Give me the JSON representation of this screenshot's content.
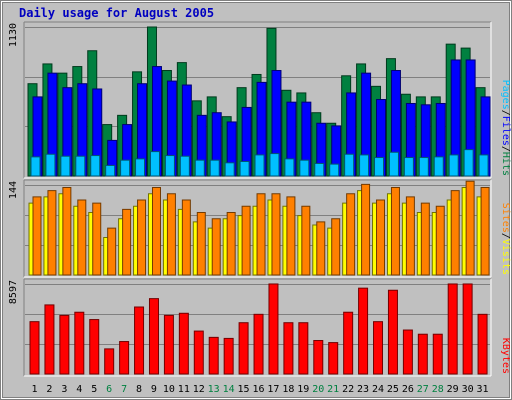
{
  "title": "Daily usage for August 2005",
  "colors": {
    "hits": "#008040",
    "files": "#0000ff",
    "pages": "#00c0ff",
    "visits": "#ffff00",
    "sites": "#ff8000",
    "kbytes": "#ff0000",
    "weekend": "#008040",
    "weekday": "#000000",
    "title": "#0000c0"
  },
  "chart_data": [
    {
      "type": "bar",
      "name": "hits-files-pages",
      "axis_max_label": "1130",
      "ylim": [
        0,
        1130
      ],
      "grid": true,
      "legend": [
        {
          "label": "Pages",
          "color": "#00c0ff"
        },
        {
          "label": "Files",
          "color": "#0000ff"
        },
        {
          "label": "Hits",
          "color": "#008040"
        }
      ],
      "categories": [
        "1",
        "2",
        "3",
        "4",
        "5",
        "6",
        "7",
        "8",
        "9",
        "10",
        "11",
        "12",
        "13",
        "14",
        "15",
        "16",
        "17",
        "18",
        "19",
        "20",
        "21",
        "22",
        "23",
        "24",
        "25",
        "26",
        "27",
        "28",
        "29",
        "30",
        "31"
      ],
      "weekend_days": [
        "6",
        "7",
        "13",
        "14",
        "20",
        "21",
        "27",
        "28"
      ],
      "series": [
        {
          "name": "Hits",
          "values": [
            700,
            850,
            780,
            830,
            950,
            390,
            460,
            790,
            1130,
            800,
            860,
            570,
            600,
            450,
            670,
            770,
            1120,
            650,
            630,
            480,
            400,
            760,
            850,
            680,
            890,
            620,
            600,
            600,
            1000,
            970,
            670
          ]
        },
        {
          "name": "Files",
          "values": [
            600,
            780,
            670,
            700,
            660,
            270,
            390,
            700,
            830,
            720,
            690,
            460,
            480,
            410,
            520,
            710,
            800,
            560,
            560,
            400,
            380,
            630,
            780,
            580,
            800,
            550,
            540,
            550,
            880,
            880,
            600
          ]
        },
        {
          "name": "Pages",
          "values": [
            145,
            165,
            150,
            150,
            155,
            80,
            120,
            130,
            185,
            155,
            150,
            120,
            120,
            100,
            110,
            160,
            170,
            130,
            120,
            95,
            90,
            165,
            160,
            140,
            180,
            140,
            140,
            145,
            160,
            200,
            160
          ]
        }
      ]
    },
    {
      "type": "bar",
      "name": "visits-sites",
      "axis_max_label": "144",
      "ylim": [
        0,
        144
      ],
      "grid": true,
      "legend": [
        {
          "label": "Sites",
          "color": "#ff8000"
        },
        {
          "label": "/",
          "color": "#000000"
        },
        {
          "label": "Visits",
          "color": "#ffff00"
        }
      ],
      "categories": [
        "1",
        "2",
        "3",
        "4",
        "5",
        "6",
        "7",
        "8",
        "9",
        "10",
        "11",
        "12",
        "13",
        "14",
        "15",
        "16",
        "17",
        "18",
        "19",
        "20",
        "21",
        "22",
        "23",
        "24",
        "25",
        "26",
        "27",
        "28",
        "29",
        "30",
        "31"
      ],
      "series": [
        {
          "name": "Visits",
          "values": [
            115,
            125,
            130,
            110,
            100,
            60,
            90,
            110,
            130,
            120,
            105,
            85,
            75,
            90,
            95,
            110,
            120,
            110,
            95,
            80,
            75,
            115,
            135,
            115,
            130,
            115,
            100,
            100,
            120,
            140,
            125
          ]
        },
        {
          "name": "Sites",
          "values": [
            125,
            135,
            140,
            120,
            115,
            75,
            105,
            120,
            140,
            130,
            120,
            100,
            90,
            100,
            110,
            130,
            130,
            125,
            110,
            85,
            90,
            130,
            145,
            120,
            140,
            125,
            115,
            110,
            135,
            150,
            140
          ]
        }
      ]
    },
    {
      "type": "bar",
      "name": "kbytes",
      "axis_max_label": "8597",
      "ylim": [
        0,
        8597
      ],
      "grid": true,
      "legend": [
        {
          "label": "KBytes",
          "color": "#ff0000"
        }
      ],
      "categories": [
        "1",
        "2",
        "3",
        "4",
        "5",
        "6",
        "7",
        "8",
        "9",
        "10",
        "11",
        "12",
        "13",
        "14",
        "15",
        "16",
        "17",
        "18",
        "19",
        "20",
        "21",
        "22",
        "23",
        "24",
        "25",
        "26",
        "27",
        "28",
        "29",
        "30",
        "31"
      ],
      "series": [
        {
          "name": "KBytes",
          "values": [
            5000,
            6600,
            5600,
            5900,
            5200,
            2400,
            3100,
            6400,
            7200,
            5600,
            5800,
            4100,
            3500,
            3400,
            4900,
            5700,
            8600,
            4900,
            4900,
            3200,
            3000,
            5900,
            8200,
            5000,
            8000,
            4200,
            3800,
            3800,
            8600,
            8600,
            5700
          ]
        }
      ]
    }
  ]
}
